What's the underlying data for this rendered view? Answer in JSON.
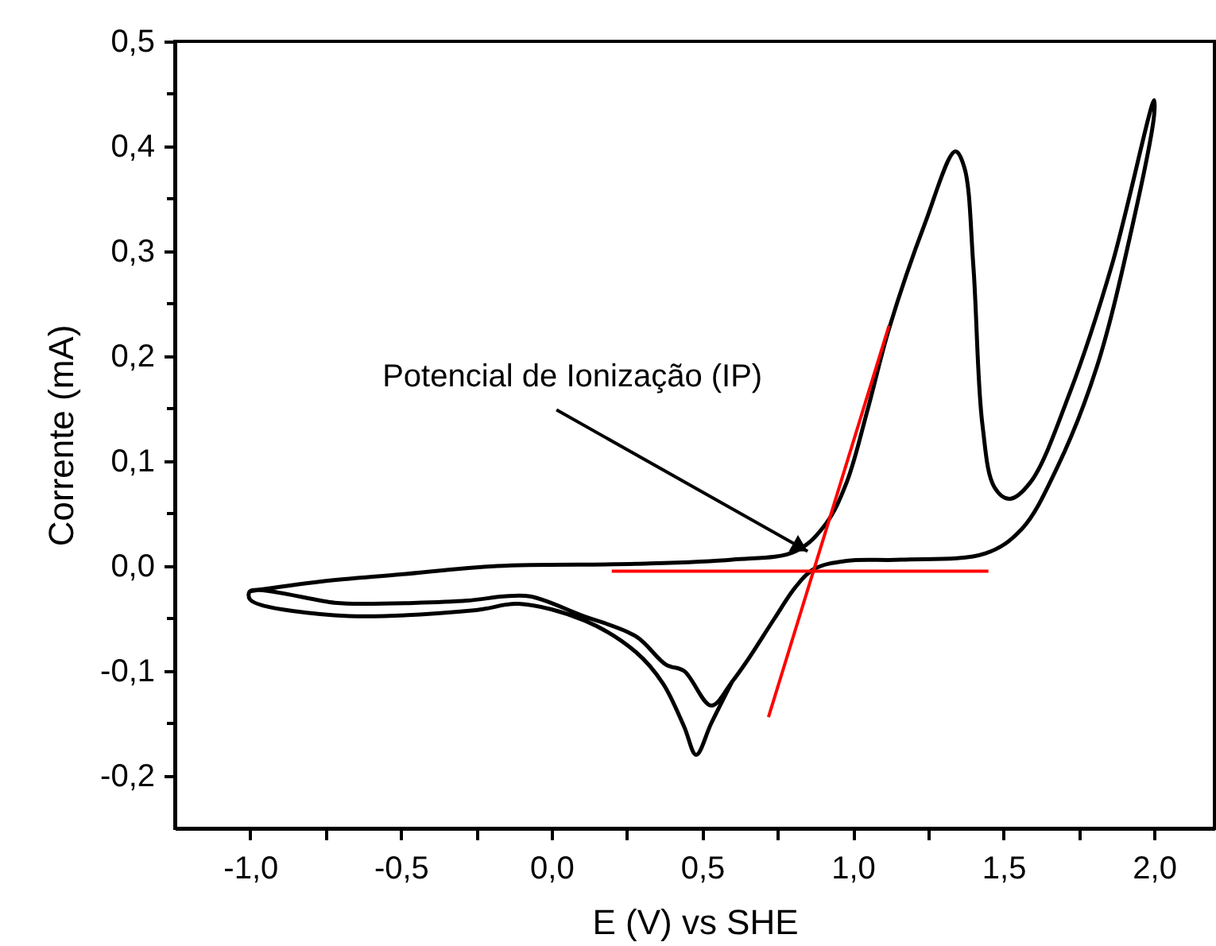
{
  "chart_data": {
    "type": "line",
    "xlabel": "E (V) vs SHE",
    "ylabel": "Corrente (mA)",
    "xlim": [
      -1.25,
      2.2
    ],
    "ylim": [
      -0.25,
      0.5
    ],
    "xticks": [
      {
        "value": -1,
        "label": "-1,0"
      },
      {
        "value": -0.75,
        "label": null
      },
      {
        "value": -0.5,
        "label": "-0,5"
      },
      {
        "value": -0.25,
        "label": null
      },
      {
        "value": 0,
        "label": "0,0"
      },
      {
        "value": 0.25,
        "label": null
      },
      {
        "value": 0.5,
        "label": "0,5"
      },
      {
        "value": 0.75,
        "label": null
      },
      {
        "value": 1,
        "label": "1,0"
      },
      {
        "value": 1.25,
        "label": null
      },
      {
        "value": 1.5,
        "label": "1,5"
      },
      {
        "value": 1.75,
        "label": null
      },
      {
        "value": 2,
        "label": "2,0"
      }
    ],
    "yticks": [
      {
        "value": -0.2,
        "label": "-0,2"
      },
      {
        "value": -0.15,
        "label": null
      },
      {
        "value": -0.1,
        "label": "-0,1"
      },
      {
        "value": -0.05,
        "label": null
      },
      {
        "value": 0,
        "label": "0,0"
      },
      {
        "value": 0.05,
        "label": null
      },
      {
        "value": 0.1,
        "label": "0,1"
      },
      {
        "value": 0.15,
        "label": null
      },
      {
        "value": 0.2,
        "label": "0,2"
      },
      {
        "value": 0.25,
        "label": null
      },
      {
        "value": 0.3,
        "label": "0,3"
      },
      {
        "value": 0.35,
        "label": null
      },
      {
        "value": 0.4,
        "label": "0,4"
      },
      {
        "value": 0.45,
        "label": null
      },
      {
        "value": 0.5,
        "label": "0,5"
      }
    ],
    "series": [
      {
        "color": "#000000",
        "x": [
          -1.0,
          -0.77,
          -0.5,
          -0.18,
          0.28,
          0.6,
          0.81,
          0.91,
          0.98,
          1.05,
          1.12,
          1.24,
          1.34,
          1.37,
          1.4,
          1.43,
          1.47,
          1.52,
          1.59,
          1.72,
          1.86,
          2.0,
          2.0,
          1.93,
          1.81,
          1.68,
          1.56,
          1.44,
          1.16,
          0.98,
          0.87,
          0.81,
          0.74,
          0.65,
          0.6,
          0.53,
          0.44,
          0.38,
          0.28,
          0.1,
          -0.07,
          -0.16,
          -0.28,
          -0.63,
          -0.72,
          -1.0,
          -1.0,
          -0.72,
          -0.25,
          -0.11,
          0.11,
          0.28,
          0.37,
          0.44,
          0.48,
          0.53,
          0.6
        ],
        "values": [
          -0.024,
          -0.015,
          -0.008,
          0.0,
          0.002,
          0.006,
          0.014,
          0.04,
          0.08,
          0.15,
          0.226,
          0.327,
          0.395,
          0.38,
          0.286,
          0.135,
          0.075,
          0.064,
          0.08,
          0.165,
          0.287,
          0.444,
          0.43,
          0.327,
          0.19,
          0.095,
          0.035,
          0.012,
          0.006,
          0.005,
          -0.003,
          -0.02,
          -0.05,
          -0.09,
          -0.11,
          -0.133,
          -0.1,
          -0.094,
          -0.067,
          -0.047,
          -0.029,
          -0.029,
          -0.033,
          -0.036,
          -0.035,
          -0.024,
          -0.032,
          -0.047,
          -0.042,
          -0.036,
          -0.052,
          -0.082,
          -0.112,
          -0.153,
          -0.18,
          -0.15,
          -0.11
        ]
      },
      {
        "type": "line",
        "color": "#ff0000",
        "x": [
          0.2,
          1.45
        ],
        "values": [
          -0.005,
          -0.005
        ]
      },
      {
        "type": "line",
        "color": "#ff0000",
        "x": [
          0.72,
          1.12
        ],
        "values": [
          -0.144,
          0.229
        ]
      }
    ],
    "annotations": [
      {
        "text": "Potencial de Ionização (IP)",
        "x": 0.85,
        "y": 0.014
      }
    ]
  }
}
